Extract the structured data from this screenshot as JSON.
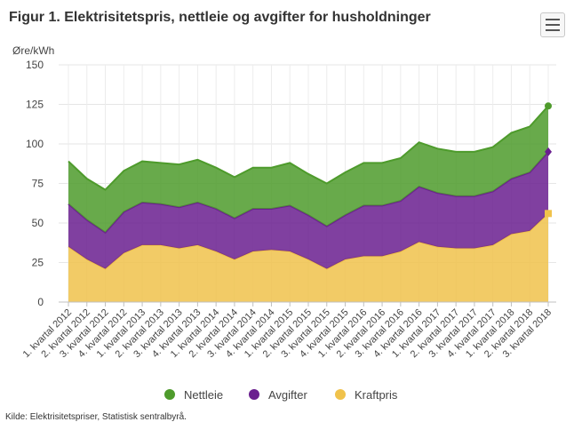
{
  "title": "Figur 1. Elektrisitetspris, nettleie og avgifter for husholdninger",
  "credits": "Kilde: Elektrisitetspriser, Statistisk sentralbyrå.",
  "menu_icon": "hamburger-menu-icon",
  "chart_data": {
    "type": "area",
    "stacked": true,
    "ylabel": "Øre/kWh",
    "ylim": [
      0,
      150
    ],
    "yticks": [
      0,
      25,
      50,
      75,
      100,
      125,
      150
    ],
    "ytick_labels": [
      "0",
      "25",
      "50",
      "75",
      "100",
      "125",
      "150"
    ],
    "grid": true,
    "legend_position": "bottom",
    "categories": [
      "1. kvartal 2012",
      "2. kvartal 2012",
      "3. kvartal 2012",
      "4. kvartal 2012",
      "1. kvartal 2013",
      "2. kvartal 2013",
      "3. kvartal 2013",
      "4. kvartal 2013",
      "1. kvartal 2014",
      "2. kvartal 2014",
      "3. kvartal 2014",
      "4. kvartal 2014",
      "1. kvartal 2015",
      "2. kvartal 2015",
      "3. kvartal 2015",
      "4. kvartal 2015",
      "1. kvartal 2016",
      "2. kvartal 2016",
      "3. kvartal 2016",
      "4. kvartal 2016",
      "1. kvartal 2017",
      "2. kvartal 2017",
      "3. kvartal 2017",
      "4. kvartal 2017",
      "1. kvartal 2018",
      "2. kvartal 2018",
      "3. kvartal 2018"
    ],
    "series": [
      {
        "name": "Kraftpris",
        "color": "#f0c24b",
        "marker": "square",
        "values": [
          35,
          27,
          21,
          31,
          36,
          36,
          34,
          36,
          32,
          27,
          32,
          33,
          32,
          27,
          21,
          27,
          29,
          29,
          32,
          38,
          35,
          34,
          34,
          36,
          43,
          45,
          56
        ]
      },
      {
        "name": "Avgifter",
        "color": "#6a1f8f",
        "marker": "diamond",
        "values": [
          27,
          25,
          23,
          26,
          27,
          26,
          26,
          27,
          27,
          26,
          27,
          26,
          29,
          28,
          27,
          28,
          32,
          32,
          32,
          35,
          34,
          33,
          33,
          34,
          35,
          37,
          39
        ]
      },
      {
        "name": "Nettleie",
        "color": "#4e9b2c",
        "marker": "circle",
        "values": [
          27,
          26,
          27,
          26,
          26,
          26,
          27,
          27,
          26,
          26,
          26,
          26,
          27,
          26,
          27,
          27,
          27,
          27,
          27,
          28,
          28,
          28,
          28,
          28,
          29,
          29,
          29
        ]
      }
    ],
    "legend": [
      {
        "name": "Nettleie",
        "color": "#4e9b2c"
      },
      {
        "name": "Avgifter",
        "color": "#6a1f8f"
      },
      {
        "name": "Kraftpris",
        "color": "#f0c24b"
      }
    ]
  }
}
